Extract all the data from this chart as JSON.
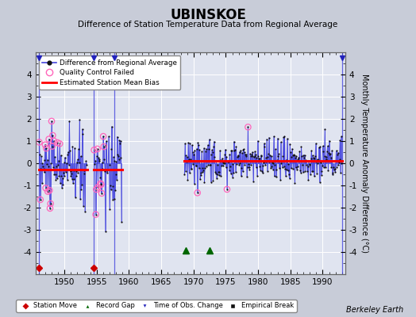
{
  "title": "UBINSKOE",
  "subtitle": "Difference of Station Temperature Data from Regional Average",
  "ylabel": "Monthly Temperature Anomaly Difference (°C)",
  "xlabel_credit": "Berkeley Earth",
  "xlim": [
    1945.5,
    1993.5
  ],
  "ylim": [
    -5,
    5
  ],
  "yticks": [
    -4,
    -3,
    -2,
    -1,
    0,
    1,
    2,
    3,
    4
  ],
  "xticks": [
    1950,
    1955,
    1960,
    1965,
    1970,
    1975,
    1980,
    1985,
    1990
  ],
  "bg_color": "#c8ccd8",
  "plot_bg_color": "#e0e4f0",
  "grid_color": "#ffffff",
  "line_color": "#4444dd",
  "dot_color": "#111111",
  "bias_color": "#ff0000",
  "qc_color": "#ff66bb",
  "station_move_color": "#cc0000",
  "record_gap_color": "#006600",
  "time_obs_color": "#2222bb",
  "empirical_break_color": "#111111",
  "segments": [
    {
      "xstart": 1946.0,
      "xend": 1953.6,
      "bias": -0.28
    },
    {
      "xstart": 1954.5,
      "xend": 1959.0,
      "bias": -0.28
    },
    {
      "xstart": 1968.5,
      "xend": 1993.0,
      "bias": 0.12
    }
  ],
  "vertical_lines": [
    {
      "x": 1946.0
    },
    {
      "x": 1954.5
    },
    {
      "x": 1957.7
    },
    {
      "x": 1993.0
    }
  ],
  "station_moves": [
    1946.0,
    1954.5
  ],
  "record_gaps": [
    1968.75,
    1972.5
  ],
  "time_obs_changes": [
    1946.0,
    1954.5,
    1957.7,
    1993.0
  ],
  "seg1_seed": 10,
  "seg2_seed": 20,
  "seg3_seed": 30,
  "seg1_start": 1946.1,
  "seg1_end": 1953.5,
  "seg1_bias": -0.25,
  "seg1_spread": 0.9,
  "seg2_start": 1954.6,
  "seg2_end": 1958.9,
  "seg2_bias": -0.2,
  "seg2_spread": 0.9,
  "seg3_start": 1968.6,
  "seg3_end": 1993.0,
  "seg3_bias": 0.12,
  "seg3_spread": 0.5
}
